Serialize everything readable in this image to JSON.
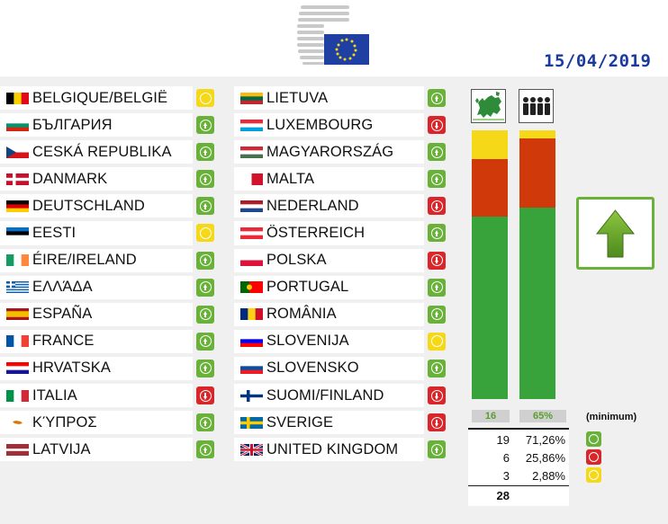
{
  "date": "15/04/2019",
  "colors": {
    "yes": "#6ab13a",
    "no": "#d8262b",
    "abstain": "#f5d817",
    "date": "#1a3aa0"
  },
  "countries_left": [
    {
      "name": "BELGIQUE/BELGIË",
      "vote": "abstain"
    },
    {
      "name": "БЪЛГАРИЯ",
      "vote": "yes"
    },
    {
      "name": "CESKÁ REPUBLIKA",
      "vote": "yes"
    },
    {
      "name": "DANMARK",
      "vote": "yes"
    },
    {
      "name": "DEUTSCHLAND",
      "vote": "yes"
    },
    {
      "name": "EESTI",
      "vote": "abstain"
    },
    {
      "name": "ÉIRE/IRELAND",
      "vote": "yes"
    },
    {
      "name": "ΕΛΛΆΔΑ",
      "vote": "yes"
    },
    {
      "name": "ESPAÑA",
      "vote": "yes"
    },
    {
      "name": "FRANCE",
      "vote": "yes"
    },
    {
      "name": "HRVATSKA",
      "vote": "yes"
    },
    {
      "name": "ITALIA",
      "vote": "no"
    },
    {
      "name": "ΚΎΠΡΟΣ",
      "vote": "yes"
    },
    {
      "name": "LATVIJA",
      "vote": "yes"
    }
  ],
  "countries_right": [
    {
      "name": "LIETUVA",
      "vote": "yes"
    },
    {
      "name": "LUXEMBOURG",
      "vote": "no"
    },
    {
      "name": "MAGYARORSZÁG",
      "vote": "yes"
    },
    {
      "name": "MALTA",
      "vote": "yes"
    },
    {
      "name": "NEDERLAND",
      "vote": "no"
    },
    {
      "name": "ÖSTERREICH",
      "vote": "yes"
    },
    {
      "name": "POLSKA",
      "vote": "no"
    },
    {
      "name": "PORTUGAL",
      "vote": "yes"
    },
    {
      "name": "ROMÂNIA",
      "vote": "yes"
    },
    {
      "name": "SLOVENIJA",
      "vote": "abstain"
    },
    {
      "name": "SLOVENSKO",
      "vote": "yes"
    },
    {
      "name": "SUOMI/FINLAND",
      "vote": "no"
    },
    {
      "name": "SVERIGE",
      "vote": "no"
    },
    {
      "name": "UNITED KINGDOM",
      "vote": "yes"
    }
  ],
  "chart_data": {
    "type": "bar",
    "categories": [
      "member-states-map-icon",
      "population-people-icon"
    ],
    "series": [
      {
        "vote": "yes",
        "values": [
          19,
          71.26
        ]
      },
      {
        "vote": "no",
        "values": [
          6,
          25.86
        ]
      },
      {
        "vote": "abstain",
        "values": [
          3,
          2.88
        ]
      }
    ],
    "thresholds": [
      "16",
      "65%"
    ],
    "threshold_note": "(minimum)",
    "stacked": true
  },
  "tally": [
    {
      "count": "19",
      "percent": "71,26%",
      "vote": "yes"
    },
    {
      "count": "6",
      "percent": "25,86%",
      "vote": "no"
    },
    {
      "count": "3",
      "percent": "2,88%",
      "vote": "abstain"
    }
  ],
  "total": "28",
  "result": "up-arrow-icon"
}
